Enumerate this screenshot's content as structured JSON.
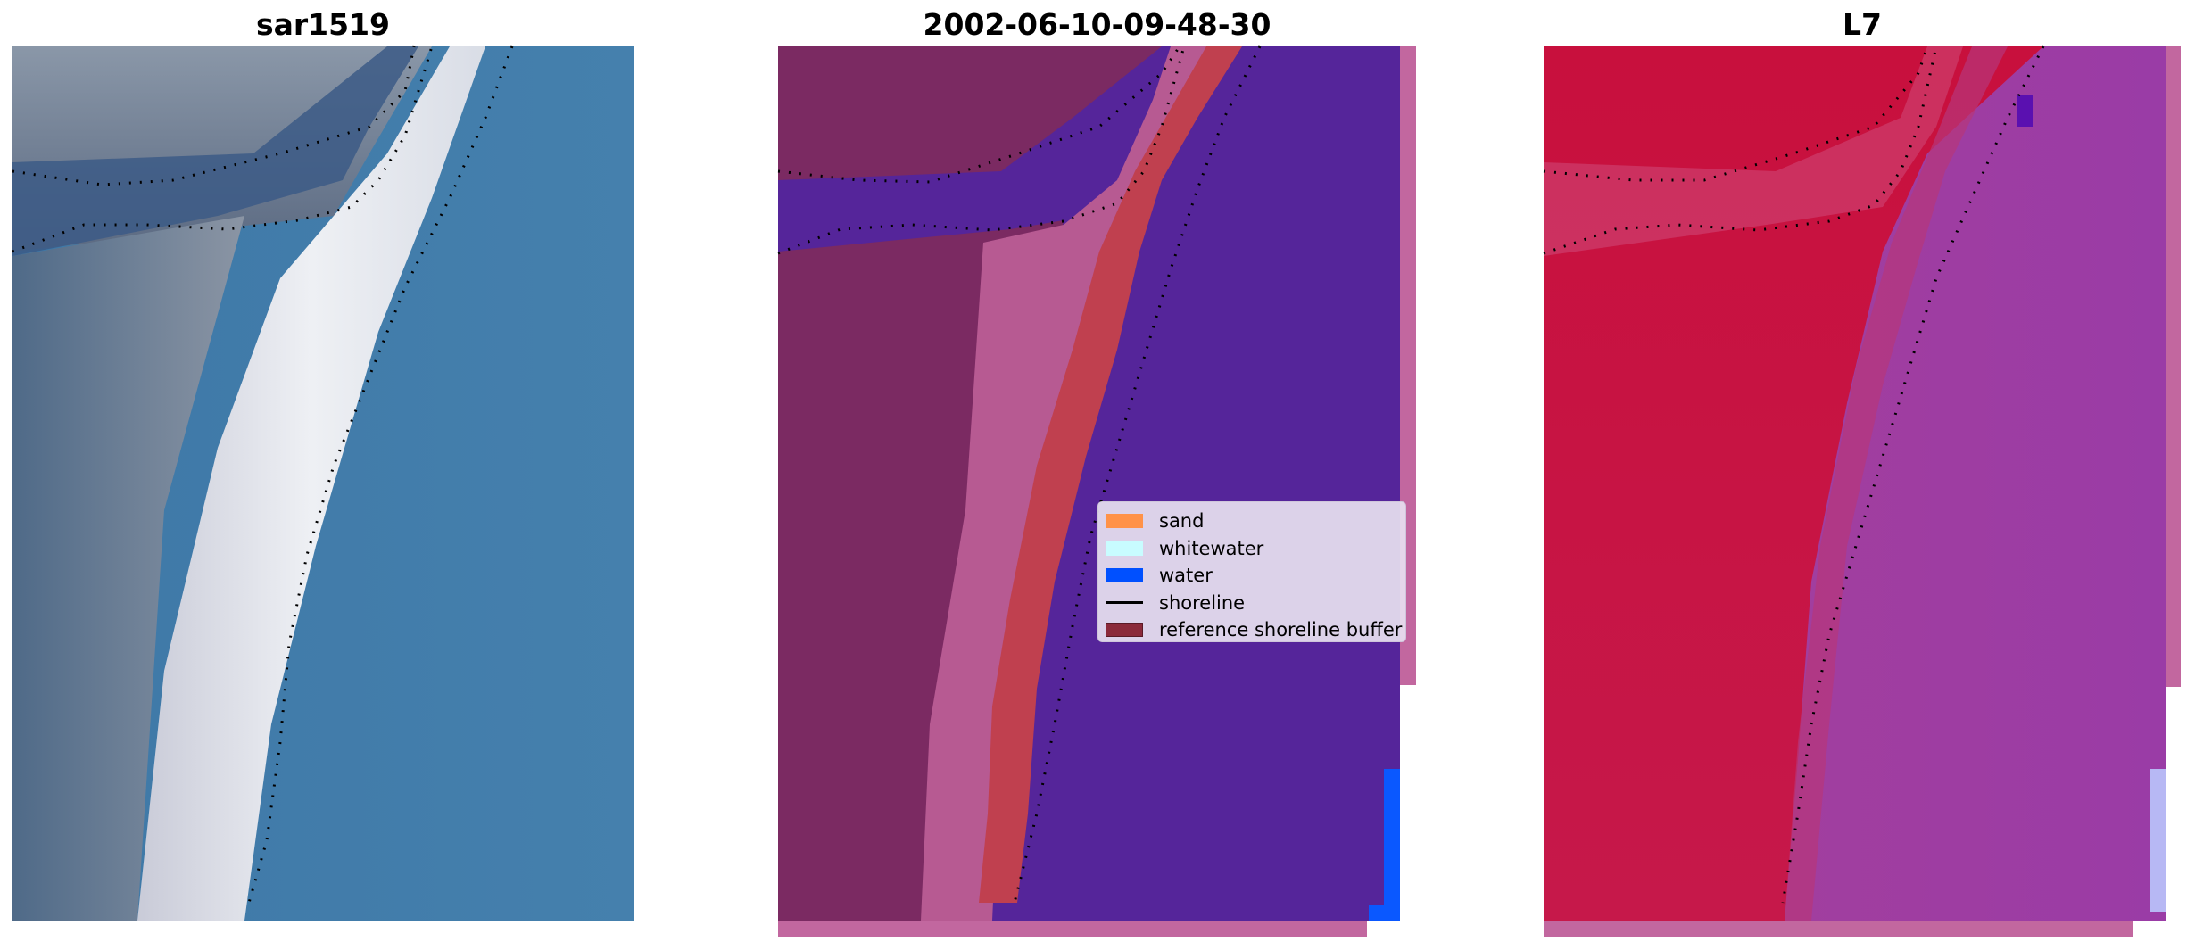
{
  "panels": {
    "left": {
      "title": "sar1519"
    },
    "middle": {
      "title": "2002-06-10-09-48-30"
    },
    "right": {
      "title": "L7"
    }
  },
  "legend": {
    "items": [
      {
        "label": "sand",
        "color": "#ff9248",
        "kind": "patch"
      },
      {
        "label": "whitewater",
        "color": "#c8fcff",
        "kind": "patch"
      },
      {
        "label": "water",
        "color": "#0050ff",
        "kind": "patch"
      },
      {
        "label": "shoreline",
        "color": "#000000",
        "kind": "line"
      },
      {
        "label": "reference shoreline buffer",
        "color": "#8b2a3a",
        "kind": "patch"
      }
    ]
  },
  "colors": {
    "rgb_water": "#3f7aa8",
    "rgb_land": "#5b6f86",
    "rgb_beach": "#e6e7ef",
    "class_water_overlay": "#55259a",
    "class_land_overlay": "#7b2a62",
    "class_buffer_overlay": "#c0404f",
    "class_beach_overlay": "#b75a92",
    "ndwi_land": "#c81443",
    "ndwi_water": "#9a3ea0",
    "nodata_strip": "#c2679f"
  }
}
